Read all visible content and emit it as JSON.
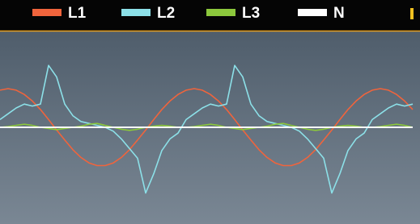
{
  "chart_data": {
    "type": "line",
    "x": [
      0,
      1,
      2,
      3,
      4,
      5,
      6,
      7,
      8,
      9,
      10,
      11,
      12,
      13,
      14,
      15,
      16,
      17,
      18,
      19,
      20,
      21,
      22,
      23,
      24,
      25,
      26,
      27,
      28,
      29,
      30,
      31,
      32,
      33,
      34,
      35,
      36,
      37,
      38,
      39,
      40,
      41,
      42,
      43,
      44,
      45,
      46,
      47,
      48,
      49,
      50,
      51
    ],
    "xlim": [
      0,
      51.9
    ],
    "ylim": [
      -2.5,
      2.5
    ],
    "series": [
      {
        "name": "L1",
        "color": "#f0643c",
        "values": [
          0.96,
          1,
          0.96,
          0.85,
          0.68,
          0.46,
          0.2,
          -0.07,
          -0.33,
          -0.58,
          -0.78,
          -0.92,
          -0.99,
          -0.99,
          -0.92,
          -0.78,
          -0.58,
          -0.33,
          -0.07,
          0.2,
          0.46,
          0.68,
          0.85,
          0.96,
          1,
          0.96,
          0.85,
          0.68,
          0.46,
          0.2,
          -0.07,
          -0.33,
          -0.58,
          -0.78,
          -0.92,
          -0.99,
          -0.99,
          -0.92,
          -0.78,
          -0.58,
          -0.33,
          -0.07,
          0.2,
          0.46,
          0.68,
          0.85,
          0.96,
          1,
          0.96,
          0.85,
          0.68,
          0.46
        ]
      },
      {
        "name": "L2",
        "color": "#8ce0e8",
        "values": [
          0.2,
          0.35,
          0.5,
          0.6,
          0.55,
          0.6,
          1.6,
          1.3,
          0.6,
          0.3,
          0.15,
          0.1,
          0.05,
          0,
          -0.1,
          -0.3,
          -0.55,
          -0.8,
          -1.7,
          -1.2,
          -0.6,
          -0.3,
          -0.15,
          0.2,
          0.35,
          0.5,
          0.6,
          0.55,
          0.6,
          1.6,
          1.3,
          0.6,
          0.3,
          0.15,
          0.1,
          0.05,
          0,
          -0.1,
          -0.3,
          -0.55,
          -0.8,
          -1.7,
          -1.2,
          -0.6,
          -0.3,
          -0.15,
          0.2,
          0.35,
          0.5,
          0.6,
          0.55,
          0.6
        ]
      },
      {
        "name": "L3",
        "color": "#8cc83c",
        "values": [
          0,
          0.02,
          0.05,
          0.08,
          0.05,
          0,
          -0.03,
          -0.06,
          -0.03,
          0,
          0.03,
          0.08,
          0.1,
          0.05,
          0,
          -0.05,
          -0.08,
          -0.05,
          0,
          0.03,
          0.05,
          0.03,
          0,
          0,
          0.02,
          0.05,
          0.08,
          0.05,
          0,
          -0.03,
          -0.06,
          -0.03,
          0,
          0.03,
          0.08,
          0.1,
          0.05,
          0,
          -0.05,
          -0.08,
          -0.05,
          0,
          0.03,
          0.05,
          0.03,
          0,
          0,
          0.02,
          0.05,
          0.08,
          0.05,
          0
        ]
      },
      {
        "name": "N",
        "color": "#ffffff",
        "values": [
          0,
          0,
          0,
          0,
          0,
          0,
          0,
          0,
          0,
          0,
          0,
          0,
          0,
          0,
          0,
          0,
          0,
          0,
          0,
          0,
          0,
          0,
          0,
          0,
          0,
          0,
          0,
          0,
          0,
          0,
          0,
          0,
          0,
          0,
          0,
          0,
          0,
          0,
          0,
          0,
          0,
          0,
          0,
          0,
          0,
          0,
          0,
          0,
          0,
          0,
          0,
          0
        ]
      }
    ]
  }
}
